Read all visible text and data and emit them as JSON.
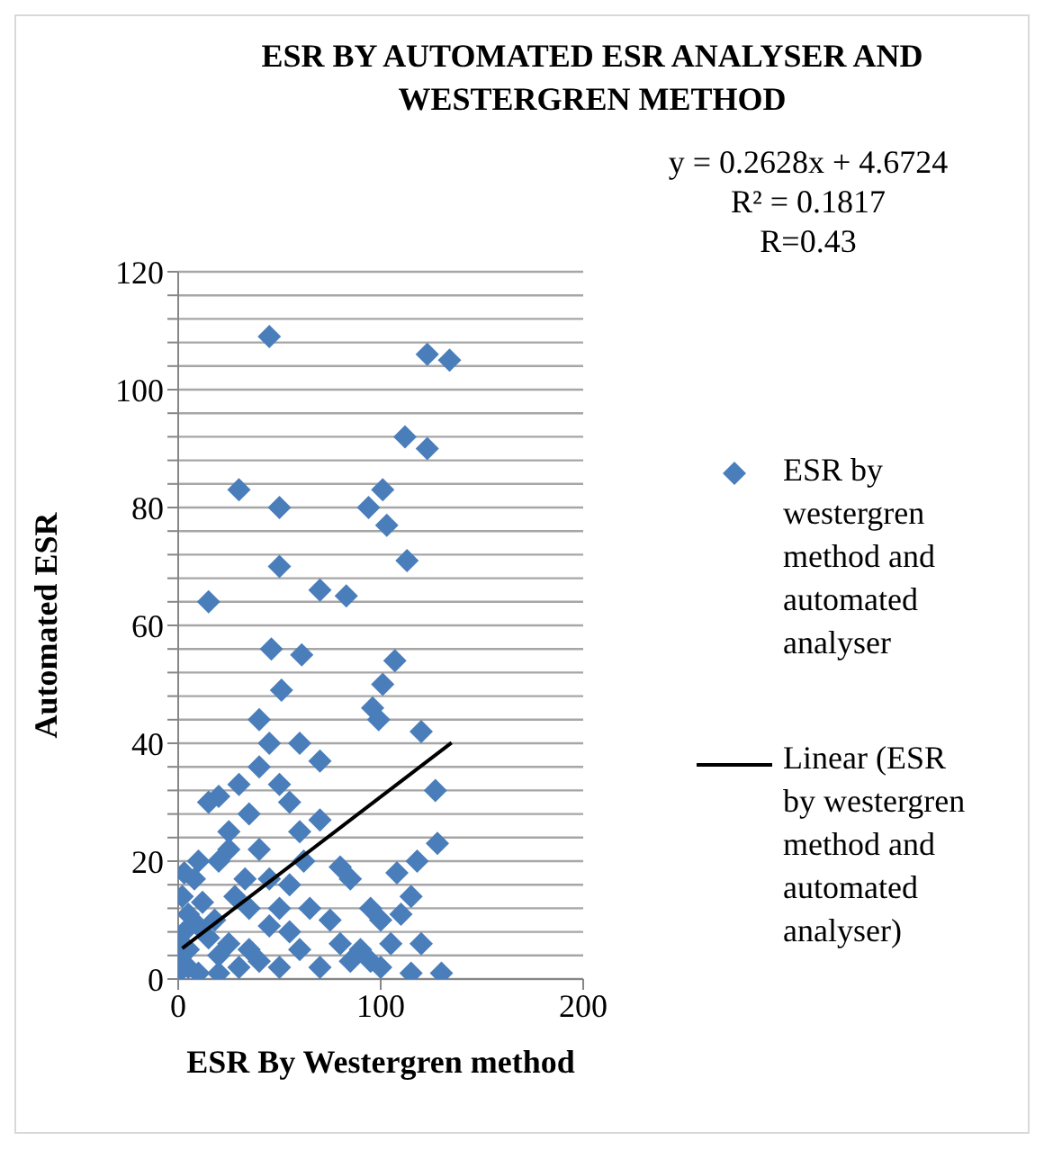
{
  "chart_data": {
    "type": "scatter",
    "title": "ESR BY AUTOMATED ESR ANALYSER AND WESTERGREN METHOD",
    "xlabel": "ESR By Westergren method",
    "ylabel": "Automated ESR",
    "annotations": [
      "y = 0.2628x + 4.6724\nR² = 0.1817\nR=0.43"
    ],
    "xlim": [
      0,
      200
    ],
    "xticks": [
      0,
      100,
      200
    ],
    "ylim": [
      0,
      120
    ],
    "yticks": [
      0,
      {
        "value": 4,
        "label": null
      },
      {
        "value": 8,
        "label": null
      },
      {
        "value": 12,
        "label": null
      },
      {
        "value": 16,
        "label": null
      },
      20,
      {
        "value": 24,
        "label": null
      },
      {
        "value": 28,
        "label": null
      },
      {
        "value": 32,
        "label": null
      },
      {
        "value": 36,
        "label": null
      },
      40,
      {
        "value": 44,
        "label": null
      },
      {
        "value": 48,
        "label": null
      },
      {
        "value": 52,
        "label": null
      },
      {
        "value": 56,
        "label": null
      },
      60,
      {
        "value": 64,
        "label": null
      },
      {
        "value": 68,
        "label": null
      },
      {
        "value": 72,
        "label": null
      },
      {
        "value": 76,
        "label": null
      },
      80,
      {
        "value": 84,
        "label": null
      },
      {
        "value": 88,
        "label": null
      },
      {
        "value": 92,
        "label": null
      },
      {
        "value": 96,
        "label": null
      },
      100,
      {
        "value": 104,
        "label": null
      },
      {
        "value": 108,
        "label": null
      },
      {
        "value": 112,
        "label": null
      },
      {
        "value": 116,
        "label": null
      },
      120
    ],
    "grid": "y",
    "legend": "right",
    "marker": "diamond",
    "series": [
      {
        "name": "ESR by westergren method and automated analyser",
        "color": "#4a7ebb",
        "x": [
          45,
          15,
          30,
          50,
          50,
          123,
          134,
          112,
          123,
          101,
          94,
          103,
          113,
          70,
          83,
          46,
          61,
          107,
          101,
          96,
          99,
          51,
          40,
          45,
          60,
          70,
          120,
          127,
          128,
          118,
          40,
          20,
          30,
          15,
          35,
          50,
          55,
          60,
          70,
          80,
          10,
          20,
          25,
          40,
          45,
          55,
          62,
          85,
          95,
          100,
          110,
          120,
          130,
          115,
          100,
          85,
          70,
          60,
          50,
          40,
          30,
          20,
          10,
          5,
          2,
          3,
          5,
          2,
          8,
          12,
          15,
          18,
          25,
          28,
          35,
          45,
          50,
          55,
          65,
          75,
          80,
          90,
          95,
          105,
          115,
          5,
          10,
          20,
          35,
          0,
          1,
          3,
          108,
          25,
          33
        ],
        "values": [
          109,
          64,
          83,
          80,
          70,
          106,
          105,
          92,
          90,
          83,
          80,
          77,
          71,
          66,
          65,
          56,
          55,
          54,
          50,
          46,
          44,
          49,
          44,
          40,
          40,
          37,
          42,
          32,
          23,
          20,
          36,
          31,
          33,
          30,
          28,
          33,
          30,
          25,
          27,
          19,
          20,
          20,
          22,
          22,
          17,
          16,
          20,
          17,
          12,
          10,
          11,
          6,
          1,
          1,
          2,
          3,
          2,
          5,
          2,
          3,
          2,
          1,
          1,
          2,
          4,
          8,
          11,
          14,
          17,
          13,
          7,
          10,
          6,
          14,
          12,
          9,
          12,
          8,
          12,
          10,
          6,
          5,
          3,
          6,
          14,
          5,
          9,
          4,
          5,
          1,
          6,
          18,
          18,
          25,
          17
        ]
      },
      {
        "name": "Linear (ESR by westergren method and automated analyser)",
        "color": "#000000",
        "type": "line",
        "line_style": "solid",
        "marker": "none",
        "x": [
          2,
          135
        ],
        "values": [
          5.2,
          40.1
        ]
      }
    ]
  }
}
